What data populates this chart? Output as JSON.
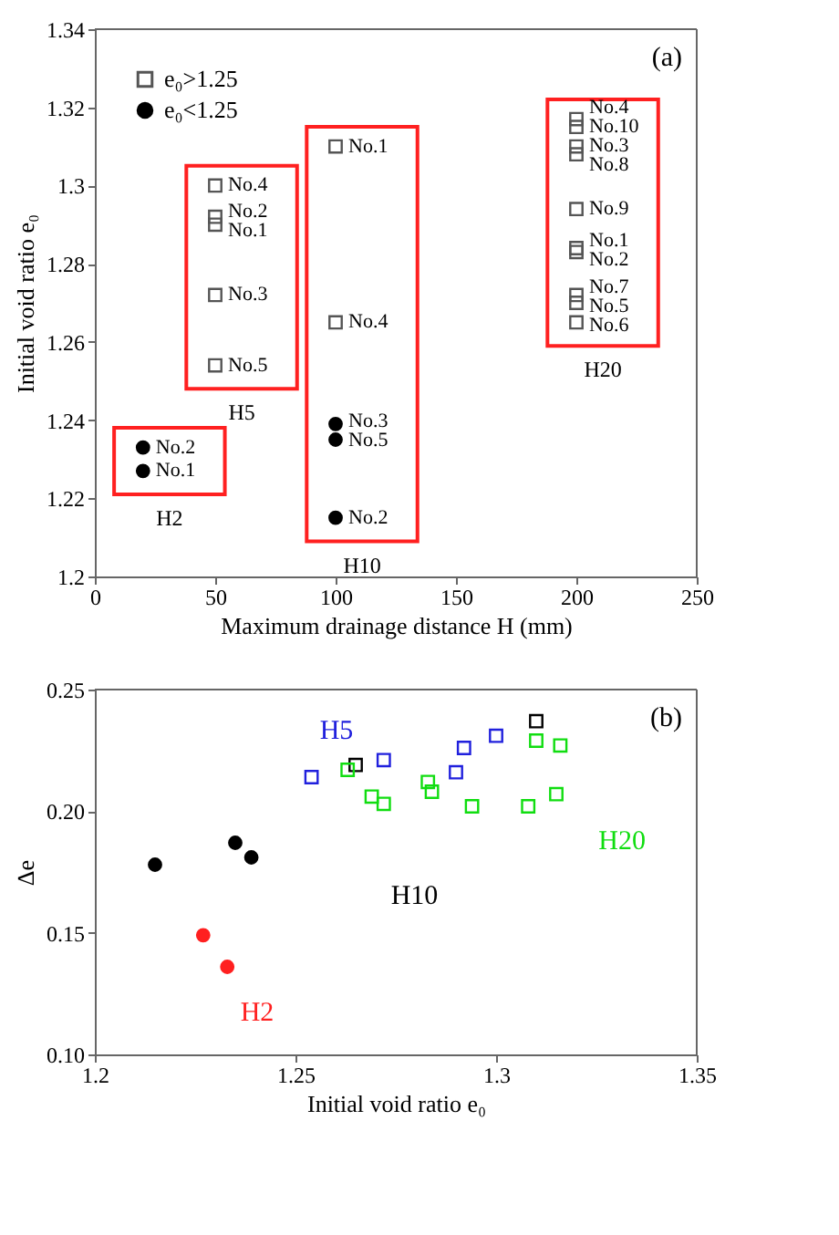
{
  "chart_data": [
    {
      "type": "scatter",
      "xlabel": "Maximum drainage distance H (mm)",
      "ylabel": "Initial void ratio e₀",
      "xlim": [
        0,
        250
      ],
      "ylim": [
        1.2,
        1.34
      ],
      "xticks": [
        0,
        50,
        100,
        150,
        200,
        250
      ],
      "yticks": [
        1.2,
        1.22,
        1.24,
        1.26,
        1.28,
        1.3,
        1.32,
        1.34
      ],
      "legend": "top left",
      "series": [
        {
          "name": "e₀>1.25",
          "color": "#555555",
          "marker": "square",
          "x": [
            50,
            50,
            50,
            50,
            50,
            100,
            100,
            200,
            200,
            200,
            200,
            200,
            200,
            200,
            200,
            200,
            200
          ],
          "values": [
            1.3,
            1.292,
            1.29,
            1.272,
            1.254,
            1.31,
            1.265,
            1.317,
            1.315,
            1.31,
            1.308,
            1.294,
            1.284,
            1.283,
            1.272,
            1.27,
            1.265
          ]
        },
        {
          "name": "e₀<1.25",
          "color": "#000000",
          "marker": "circle",
          "x": [
            20,
            20,
            100,
            100,
            100
          ],
          "values": [
            1.233,
            1.227,
            1.239,
            1.235,
            1.215
          ]
        }
      ],
      "annotations": [
        "(a)",
        {
          "text": "No.4",
          "x": 50,
          "y": 1.3
        },
        {
          "text": "No.2",
          "x": 50,
          "y": 1.292
        },
        {
          "text": "No.1",
          "x": 50,
          "y": 1.29
        },
        {
          "text": "No.3",
          "x": 50,
          "y": 1.272
        },
        {
          "text": "No.5",
          "x": 50,
          "y": 1.254
        },
        {
          "text": "No.1",
          "x": 100,
          "y": 1.31
        },
        {
          "text": "No.4",
          "x": 100,
          "y": 1.265
        },
        {
          "text": "No.3",
          "x": 100,
          "y": 1.2395
        },
        {
          "text": "No.5",
          "x": 100,
          "y": 1.235
        },
        {
          "text": "No.2",
          "x": 100,
          "y": 1.215
        },
        {
          "text": "No.2",
          "x": 20,
          "y": 1.233
        },
        {
          "text": "No.1",
          "x": 20,
          "y": 1.227
        },
        {
          "text": "No.4",
          "x": 200,
          "y": 1.317
        },
        {
          "text": "No.10",
          "x": 200,
          "y": 1.315
        },
        {
          "text": "No.3",
          "x": 200,
          "y": 1.31
        },
        {
          "text": "No.8",
          "x": 200,
          "y": 1.308
        },
        {
          "text": "No.9",
          "x": 200,
          "y": 1.294
        },
        {
          "text": "No.1",
          "x": 200,
          "y": 1.284
        },
        {
          "text": "No.2",
          "x": 200,
          "y": 1.283
        },
        {
          "text": "No.7",
          "x": 200,
          "y": 1.272
        },
        {
          "text": "No.5",
          "x": 200,
          "y": 1.27
        },
        {
          "text": "No.6",
          "x": 200,
          "y": 1.265
        },
        "H2",
        "H5",
        "H10",
        "H20"
      ]
    },
    {
      "type": "scatter",
      "xlabel": "Initial void ratio e₀",
      "ylabel": "Δe",
      "xlim": [
        1.2,
        1.35
      ],
      "ylim": [
        0.1,
        0.25
      ],
      "xticks": [
        1.2,
        1.25,
        1.3,
        1.35
      ],
      "yticks": [
        {
          "value": 0.1,
          "label": "0.10"
        },
        {
          "value": 0.15,
          "label": "0.15"
        },
        {
          "value": 0.2,
          "label": "0.20"
        },
        {
          "value": 0.25,
          "label": "0.25"
        }
      ],
      "series": [
        {
          "name": "H2",
          "color": "#ff2020",
          "marker": "circle",
          "x": [
            1.227,
            1.233
          ],
          "values": [
            0.149,
            0.136
          ]
        },
        {
          "name": "H10",
          "color": "#000000",
          "marker": "circle",
          "x": [
            1.215,
            1.235,
            1.239
          ],
          "values": [
            0.178,
            0.187,
            0.181
          ]
        },
        {
          "color": "#000000",
          "marker": "square",
          "x": [
            1.265,
            1.31
          ],
          "values": [
            0.219,
            0.237
          ]
        },
        {
          "name": "H5",
          "color": "#2020dd",
          "marker": "square",
          "x": [
            1.254,
            1.272,
            1.29,
            1.292,
            1.3
          ],
          "values": [
            0.214,
            0.221,
            0.216,
            0.226,
            0.231
          ]
        },
        {
          "name": "H20",
          "color": "#10dd10",
          "marker": "square",
          "x": [
            1.263,
            1.269,
            1.272,
            1.283,
            1.284,
            1.294,
            1.308,
            1.31,
            1.315,
            1.316
          ],
          "values": [
            0.217,
            0.206,
            0.203,
            0.212,
            0.208,
            0.202,
            0.202,
            0.229,
            0.207,
            0.227
          ]
        }
      ],
      "annotations": [
        "(b)"
      ]
    }
  ]
}
